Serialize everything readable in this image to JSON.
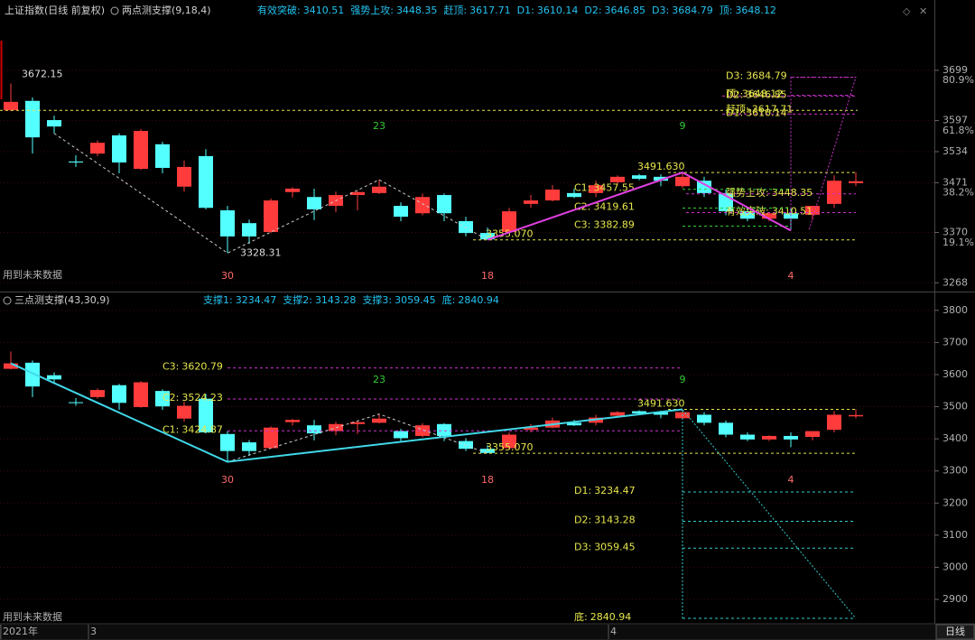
{
  "chart_data": {
    "type": "candlestick",
    "symbol": "上证指数(日线 前复权)",
    "period": "日线",
    "note": "用到未来数据",
    "up_color": "#ff3b3b",
    "down_color": "#54ffff",
    "categories": [
      "2021年",
      null,
      null,
      null,
      "3",
      null,
      null,
      null,
      null,
      null,
      null,
      null,
      null,
      null,
      null,
      null,
      null,
      null,
      null,
      null,
      null,
      null,
      null,
      null,
      null,
      null,
      null,
      null,
      "4",
      null,
      null,
      null,
      null,
      null,
      null,
      null,
      null,
      null,
      null,
      null
    ],
    "open": [
      3618,
      3637,
      3598,
      3514,
      3530,
      3567,
      3499,
      3549,
      3463,
      3525,
      3415,
      3389,
      3371,
      3452,
      3442,
      3424,
      3446,
      3450,
      3424,
      3409,
      3446,
      3393,
      3369,
      3371,
      3428,
      3435,
      3450,
      3450,
      3472,
      3486,
      3483,
      3464,
      3475,
      3450,
      3413,
      3398,
      3409,
      3406,
      3428,
      3470
    ],
    "high": [
      3672.15,
      3644,
      3607,
      3527,
      3557,
      3571,
      3580,
      3554,
      3516,
      3539,
      3424,
      3396,
      3439,
      3462,
      3459,
      3453,
      3454,
      3477,
      3431,
      3449,
      3449,
      3402,
      3380,
      3420,
      3446,
      3466,
      3459,
      3475,
      3486,
      3489,
      3488,
      3491.63,
      3483,
      3457,
      3420,
      3411,
      3420,
      3424,
      3486,
      3492
    ],
    "low": [
      3616,
      3530,
      3571,
      3503,
      3525,
      3490,
      3497,
      3490,
      3453,
      3417,
      3328.31,
      3347,
      3369,
      3441,
      3395,
      3411,
      3415,
      3448,
      3393,
      3405,
      3393,
      3362,
      3355.07,
      3369,
      3420,
      3433,
      3440,
      3442,
      3468,
      3476,
      3464,
      3460,
      3442,
      3405,
      3393,
      3393,
      3374,
      3395,
      3420,
      3464
    ],
    "close": [
      3635,
      3563,
      3585,
      3512,
      3552,
      3512,
      3576,
      3501,
      3503,
      3420,
      3362,
      3362,
      3435,
      3459,
      3417,
      3446,
      3452,
      3463,
      3402,
      3442,
      3409,
      3369,
      3356,
      3413,
      3435,
      3457,
      3442,
      3466,
      3483,
      3479,
      3475,
      3483,
      3450,
      3413,
      3398,
      3409,
      3398,
      3424,
      3475,
      3474
    ],
    "cycle_counts": [
      null,
      null,
      null,
      null,
      null,
      null,
      null,
      null,
      null,
      null,
      "30",
      null,
      null,
      null,
      null,
      null,
      null,
      "23",
      null,
      null,
      null,
      null,
      "18",
      null,
      null,
      null,
      null,
      null,
      null,
      null,
      null,
      "9",
      null,
      null,
      null,
      null,
      "4",
      null,
      null,
      null
    ],
    "panels": [
      {
        "indicator": "两点测支撑(9,18,4)",
        "readouts": [
          {
            "label": "有效突破:",
            "value": 3410.51
          },
          {
            "label": "强势上攻:",
            "value": 3448.35
          },
          {
            "label": "赶顶:",
            "value": 3617.71
          },
          {
            "label": "D1:",
            "value": 3610.14
          },
          {
            "label": "D2:",
            "value": 3646.85
          },
          {
            "label": "D3:",
            "value": 3684.79
          },
          {
            "label": "顶:",
            "value": 3648.12
          }
        ],
        "ylim": [
          3252,
          3816
        ],
        "yticks": [
          3699,
          3597,
          3534,
          3471,
          3370,
          3268
        ],
        "pct_ticks": [
          {
            "value": 3679,
            "label": "80.9%"
          },
          {
            "value": 3576,
            "label": "61.8%"
          },
          {
            "value": 3451,
            "label": "38.2%"
          },
          {
            "value": 3349,
            "label": "19.1%"
          }
        ],
        "levels": [
          {
            "label": "D3:",
            "value": 3684.79,
            "color": "#cc33cc"
          },
          {
            "label": "D2:",
            "value": 3646.85,
            "color": "#cc33cc"
          },
          {
            "label": "顶:",
            "value": 3648.12,
            "color": "#cc33cc"
          },
          {
            "label": "D1:",
            "value": 3610.14,
            "color": "#cc33cc"
          },
          {
            "label": "赶顶:",
            "value": 3617.71,
            "color": "#e6e64c"
          },
          {
            "label": "强势上攻:",
            "value": 3448.35,
            "color": "#cc33cc"
          },
          {
            "label": "有效突破:",
            "value": 3410.51,
            "color": "#cc33cc"
          },
          {
            "label": "C1:",
            "value": 3457.55,
            "color": "#33cc33"
          },
          {
            "label": "C2:",
            "value": 3419.61,
            "color": "#33cc33"
          },
          {
            "label": "C3:",
            "value": 3382.89,
            "color": "#33cc33"
          }
        ],
        "pivots": {
          "values": [
            3672.15,
            3328.31,
            3491.63,
            3355.07
          ],
          "value_labels": [
            "3672.15",
            "3328.31",
            "3491.630",
            "3355.070"
          ]
        },
        "line_color": "#e040e0"
      },
      {
        "indicator": "三点测支撑(43,30,9)",
        "readouts": [
          {
            "label": "支撑1:",
            "value": 3234.47
          },
          {
            "label": "支撑2:",
            "value": 3143.28
          },
          {
            "label": "支撑3:",
            "value": 3059.45
          },
          {
            "label": "底:",
            "value": 2840.94
          }
        ],
        "ylim": [
          2827,
          3822
        ],
        "yticks": [
          3800,
          3700,
          3600,
          3500,
          3400,
          3300,
          3200,
          3100,
          3000,
          2900
        ],
        "levels": [
          {
            "label": "C3:",
            "value": 3620.79,
            "color": "#cc33cc"
          },
          {
            "label": "C2:",
            "value": 3524.23,
            "color": "#cc33cc"
          },
          {
            "label": "C1:",
            "value": 3424.87,
            "color": "#cc33cc"
          },
          {
            "label": "D1:",
            "value": 3234.47,
            "color": "#33cccc"
          },
          {
            "label": "D2:",
            "value": 3143.28,
            "color": "#33cccc"
          },
          {
            "label": "D3:",
            "value": 3059.45,
            "color": "#33cccc"
          },
          {
            "label": "底:",
            "value": 2840.94,
            "color": "#33cccc"
          }
        ],
        "pivots": {
          "values": [
            3491.63,
            3355.07
          ],
          "value_labels": [
            "3491.630",
            "3355.070"
          ]
        },
        "line_color": "#40d8e8"
      }
    ]
  }
}
